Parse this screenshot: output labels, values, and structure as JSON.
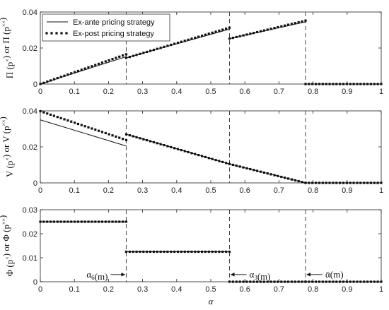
{
  "chart_data": {
    "type": "line",
    "xlabel": "α",
    "xlim": [
      0,
      1
    ],
    "xticks": [
      "0",
      "0.1",
      "0.2",
      "0.3",
      "0.4",
      "0.5",
      "0.6",
      "0.7",
      "0.8",
      "0.9",
      "1"
    ],
    "thresholds": [
      0.252,
      0.555,
      0.778
    ],
    "legend": {
      "location": "top-left",
      "entries": [
        "Ex-ante pricing strategy",
        "Ex-post pricing strategy"
      ]
    },
    "annotations": [
      {
        "text": "α₆(m)",
        "x": 0.252,
        "y": 0.003,
        "arrow": "right"
      },
      {
        "text": "α₃(m)",
        "x": 0.555,
        "y": 0.003,
        "arrow": "left"
      },
      {
        "text": "ᾱ(m)",
        "x": 0.778,
        "y": 0.003,
        "arrow": "left"
      }
    ],
    "panels": [
      {
        "ylabel": "Π (pˣ) or Π (pˣˣ)",
        "ylim": [
          0,
          0.04
        ],
        "yticks": [
          "0",
          "0.02",
          "0.04"
        ],
        "series": [
          {
            "name": "Ex-ante pricing strategy",
            "style": "line",
            "segments": [
              {
                "x": [
                  0,
                  0.252
                ],
                "y": [
                  0,
                  0.0152
                ]
              },
              {
                "x": [
                  0.252,
                  0.555
                ],
                "y": [
                  0.0145,
                  0.0305
                ]
              },
              {
                "x": [
                  0.555,
                  0.778
                ],
                "y": [
                  0.0252,
                  0.0345
                ]
              },
              {
                "x": [
                  0.778,
                  1.0
                ],
                "y": [
                  0,
                  0
                ]
              }
            ]
          },
          {
            "name": "Ex-post pricing strategy",
            "style": "markers",
            "segments": [
              {
                "x": [
                  0,
                  0.252
                ],
                "y": [
                  0,
                  0.0165
                ]
              },
              {
                "x": [
                  0.252,
                  0.555
                ],
                "y": [
                  0.0145,
                  0.0313
                ]
              },
              {
                "x": [
                  0.555,
                  0.778
                ],
                "y": [
                  0.0252,
                  0.0352
                ]
              },
              {
                "x": [
                  0.778,
                  1.0
                ],
                "y": [
                  0,
                  0
                ]
              }
            ]
          }
        ]
      },
      {
        "ylabel": "V (pˣ) or V (pˣˣ)",
        "ylim": [
          0,
          0.04
        ],
        "yticks": [
          "0",
          "0.02",
          "0.04"
        ],
        "series": [
          {
            "name": "Ex-ante pricing strategy",
            "style": "line",
            "segments": [
              {
                "x": [
                  0,
                  0.252
                ],
                "y": [
                  0.035,
                  0.0205
                ]
              },
              {
                "x": [
                  0.252,
                  0.555,
                  0.778
                ],
                "y": [
                  0.027,
                  0.0105,
                  0
                ]
              },
              {
                "x": [
                  0.778,
                  1.0
                ],
                "y": [
                  0,
                  0
                ]
              }
            ]
          },
          {
            "name": "Ex-post pricing strategy",
            "style": "markers",
            "segments": [
              {
                "x": [
                  0,
                  0.252
                ],
                "y": [
                  0.0398,
                  0.0238
                ]
              },
              {
                "x": [
                  0.252,
                  0.555,
                  0.778
                ],
                "y": [
                  0.027,
                  0.0105,
                  0
                ]
              },
              {
                "x": [
                  0.778,
                  1.0
                ],
                "y": [
                  0,
                  0
                ]
              }
            ]
          }
        ]
      },
      {
        "ylabel": "Φ (pˣ) or Φ (pˣˣ)",
        "ylim": [
          0,
          0.03
        ],
        "yticks": [
          "0",
          "0.01",
          "0.02",
          "0.03"
        ],
        "series": [
          {
            "name": "Ex-ante pricing strategy",
            "style": "line",
            "segments": [
              {
                "x": [
                  0,
                  0.252
                ],
                "y": [
                  0.025,
                  0.025
                ]
              },
              {
                "x": [
                  0.252,
                  0.555
                ],
                "y": [
                  0.0125,
                  0.0125
                ]
              },
              {
                "x": [
                  0.555,
                  0.778
                ],
                "y": [
                  0,
                  0
                ]
              },
              {
                "x": [
                  0.778,
                  1.0
                ],
                "y": [
                  0,
                  0
                ]
              }
            ]
          },
          {
            "name": "Ex-post pricing strategy",
            "style": "markers",
            "segments": [
              {
                "x": [
                  0,
                  0.252
                ],
                "y": [
                  0.025,
                  0.025
                ]
              },
              {
                "x": [
                  0.252,
                  0.555
                ],
                "y": [
                  0.0125,
                  0.0125
                ]
              },
              {
                "x": [
                  0.555,
                  0.778
                ],
                "y": [
                  0,
                  0
                ]
              },
              {
                "x": [
                  0.778,
                  1.0
                ],
                "y": [
                  0,
                  0
                ]
              }
            ]
          }
        ]
      }
    ]
  }
}
